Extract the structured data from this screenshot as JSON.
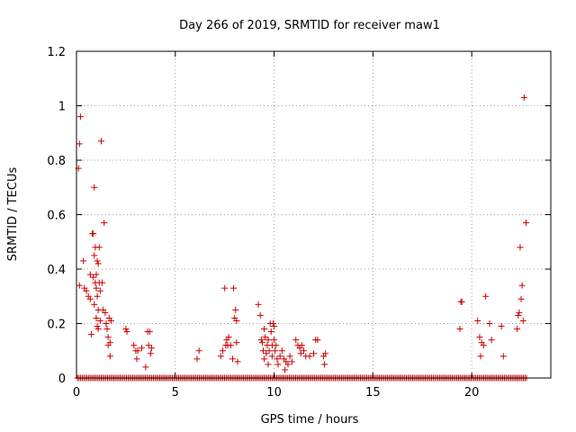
{
  "chart_data": {
    "type": "scatter",
    "title": "Day 266 of 2019, SRMTID for receiver maw1",
    "xlabel": "GPS time / hours",
    "ylabel": "SRMTID / TECUs",
    "xlim": [
      0,
      24
    ],
    "ylim": [
      0,
      1.2
    ],
    "xticks": [
      0,
      5,
      10,
      15,
      20
    ],
    "xtick_labels": [
      "0",
      "5",
      "10",
      "15",
      "20"
    ],
    "yticks": [
      0,
      0.2,
      0.4,
      0.6,
      0.8,
      1.0,
      1.2
    ],
    "ytick_labels": [
      "0",
      "0.2",
      "0.4",
      "0.6",
      "0.8",
      "1",
      "1.2"
    ],
    "grid": true,
    "marker": "+",
    "color": "#cc0000",
    "zero_series": {
      "x_start": 0.05,
      "x_end": 22.8,
      "step": 0.08,
      "y": 0
    },
    "series": [
      {
        "name": "maw1",
        "points": [
          [
            0.1,
            0.77
          ],
          [
            0.15,
            0.86
          ],
          [
            0.2,
            0.96
          ],
          [
            0.15,
            0.34
          ],
          [
            0.35,
            0.43
          ],
          [
            0.4,
            0.33
          ],
          [
            0.5,
            0.32
          ],
          [
            0.6,
            0.3
          ],
          [
            0.7,
            0.38
          ],
          [
            0.7,
            0.29
          ],
          [
            0.75,
            0.16
          ],
          [
            0.8,
            0.53
          ],
          [
            0.85,
            0.53
          ],
          [
            0.85,
            0.37
          ],
          [
            0.9,
            0.7
          ],
          [
            0.9,
            0.45
          ],
          [
            0.9,
            0.27
          ],
          [
            0.95,
            0.48
          ],
          [
            0.95,
            0.35
          ],
          [
            1.0,
            0.38
          ],
          [
            1.0,
            0.33
          ],
          [
            1.0,
            0.22
          ],
          [
            1.05,
            0.43
          ],
          [
            1.05,
            0.3
          ],
          [
            1.05,
            0.19
          ],
          [
            1.1,
            0.42
          ],
          [
            1.1,
            0.25
          ],
          [
            1.1,
            0.18
          ],
          [
            1.15,
            0.48
          ],
          [
            1.15,
            0.35
          ],
          [
            1.2,
            0.32
          ],
          [
            1.2,
            0.21
          ],
          [
            1.25,
            0.87
          ],
          [
            1.3,
            0.35
          ],
          [
            1.35,
            0.25
          ],
          [
            1.4,
            0.57
          ],
          [
            1.45,
            0.24
          ],
          [
            1.5,
            0.2
          ],
          [
            1.55,
            0.18
          ],
          [
            1.6,
            0.15
          ],
          [
            1.6,
            0.12
          ],
          [
            1.65,
            0.22
          ],
          [
            1.7,
            0.13
          ],
          [
            1.7,
            0.08
          ],
          [
            1.75,
            0.21
          ],
          [
            2.5,
            0.18
          ],
          [
            2.55,
            0.17
          ],
          [
            2.9,
            0.12
          ],
          [
            3.0,
            0.1
          ],
          [
            3.05,
            0.07
          ],
          [
            3.1,
            0.1
          ],
          [
            3.3,
            0.11
          ],
          [
            3.5,
            0.04
          ],
          [
            3.6,
            0.17
          ],
          [
            3.65,
            0.12
          ],
          [
            3.7,
            0.17
          ],
          [
            3.75,
            0.09
          ],
          [
            3.8,
            0.11
          ],
          [
            6.1,
            0.07
          ],
          [
            6.2,
            0.1
          ],
          [
            7.3,
            0.08
          ],
          [
            7.4,
            0.1
          ],
          [
            7.5,
            0.33
          ],
          [
            7.55,
            0.12
          ],
          [
            7.6,
            0.14
          ],
          [
            7.65,
            0.12
          ],
          [
            7.7,
            0.15
          ],
          [
            7.8,
            0.12
          ],
          [
            7.9,
            0.07
          ],
          [
            7.95,
            0.33
          ],
          [
            8.0,
            0.22
          ],
          [
            8.05,
            0.25
          ],
          [
            8.1,
            0.21
          ],
          [
            8.1,
            0.13
          ],
          [
            8.15,
            0.06
          ],
          [
            9.2,
            0.27
          ],
          [
            9.3,
            0.23
          ],
          [
            9.35,
            0.14
          ],
          [
            9.4,
            0.13
          ],
          [
            9.45,
            0.1
          ],
          [
            9.5,
            0.07
          ],
          [
            9.5,
            0.18
          ],
          [
            9.55,
            0.15
          ],
          [
            9.6,
            0.09
          ],
          [
            9.65,
            0.12
          ],
          [
            9.7,
            0.14
          ],
          [
            9.7,
            0.05
          ],
          [
            9.75,
            0.1
          ],
          [
            9.8,
            0.2
          ],
          [
            9.85,
            0.17
          ],
          [
            9.9,
            0.12
          ],
          [
            9.9,
            0.08
          ],
          [
            9.95,
            0.2
          ],
          [
            10.0,
            0.19
          ],
          [
            10.0,
            0.14
          ],
          [
            10.05,
            0.1
          ],
          [
            10.1,
            0.12
          ],
          [
            10.15,
            0.07
          ],
          [
            10.2,
            0.05
          ],
          [
            10.3,
            0.08
          ],
          [
            10.4,
            0.1
          ],
          [
            10.5,
            0.07
          ],
          [
            10.55,
            0.03
          ],
          [
            10.6,
            0.06
          ],
          [
            10.7,
            0.05
          ],
          [
            10.8,
            0.08
          ],
          [
            10.9,
            0.06
          ],
          [
            11.1,
            0.14
          ],
          [
            11.2,
            0.12
          ],
          [
            11.3,
            0.11
          ],
          [
            11.35,
            0.09
          ],
          [
            11.4,
            0.12
          ],
          [
            11.5,
            0.1
          ],
          [
            11.6,
            0.08
          ],
          [
            11.8,
            0.08
          ],
          [
            12.0,
            0.09
          ],
          [
            12.1,
            0.14
          ],
          [
            12.2,
            0.14
          ],
          [
            12.5,
            0.08
          ],
          [
            12.55,
            0.05
          ],
          [
            12.6,
            0.09
          ],
          [
            19.4,
            0.18
          ],
          [
            19.45,
            0.28
          ],
          [
            19.5,
            0.28
          ],
          [
            20.3,
            0.21
          ],
          [
            20.4,
            0.15
          ],
          [
            20.45,
            0.08
          ],
          [
            20.5,
            0.13
          ],
          [
            20.6,
            0.12
          ],
          [
            20.7,
            0.3
          ],
          [
            20.9,
            0.2
          ],
          [
            21.0,
            0.14
          ],
          [
            21.5,
            0.19
          ],
          [
            21.6,
            0.08
          ],
          [
            22.3,
            0.18
          ],
          [
            22.35,
            0.23
          ],
          [
            22.4,
            0.24
          ],
          [
            22.45,
            0.48
          ],
          [
            22.5,
            0.29
          ],
          [
            22.55,
            0.34
          ],
          [
            22.6,
            0.21
          ],
          [
            22.65,
            1.03
          ],
          [
            22.75,
            0.57
          ]
        ]
      }
    ]
  }
}
